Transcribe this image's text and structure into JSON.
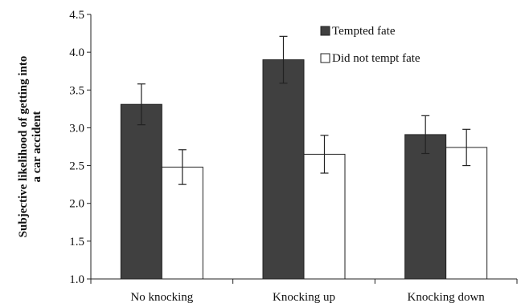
{
  "chart_data": {
    "type": "bar",
    "title": "",
    "xlabel": "",
    "ylabel_lines": [
      "Subjective likelihood of getting into",
      "a car accident"
    ],
    "categories": [
      "No knocking",
      "Knocking up",
      "Knocking down"
    ],
    "ylim": [
      1.0,
      4.5
    ],
    "yticks": [
      "1.0",
      "1.5",
      "2.0",
      "2.5",
      "3.0",
      "3.5",
      "4.0",
      "4.5"
    ],
    "grid": false,
    "legend_position": "top-right",
    "series": [
      {
        "name": "Tempted fate",
        "color": "#404040",
        "values": [
          3.31,
          3.9,
          2.91
        ],
        "error": [
          0.27,
          0.31,
          0.25
        ]
      },
      {
        "name": "Did not tempt fate",
        "color": "#ffffff",
        "values": [
          2.48,
          2.65,
          2.74
        ],
        "error": [
          0.23,
          0.25,
          0.24
        ]
      }
    ]
  }
}
